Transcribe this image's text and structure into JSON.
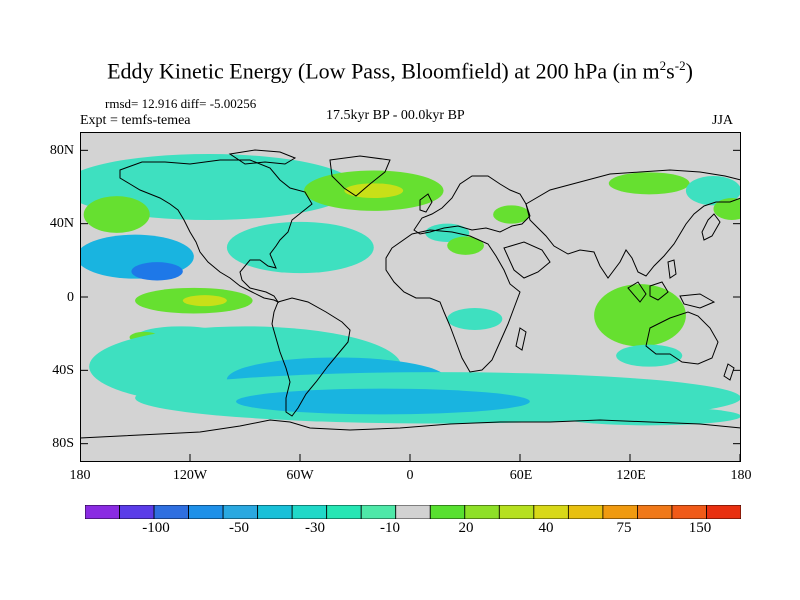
{
  "title": {
    "main": "Eddy Kinetic Energy (Low Pass, Bloomfield) at 200 hPa (in m",
    "sup1": "2",
    "mid": "s",
    "sup2": "-2",
    "end": ")"
  },
  "stats": "rmsd= 12.916 diff= -5.00256",
  "experiment": "Expt = temfs-temea",
  "period": "17.5kyr BP - 00.0kyr BP",
  "season": "JJA",
  "chart_data": {
    "type": "heatmap",
    "projection": "cylindrical-equidistant",
    "variable": "Eddy kinetic energy difference, 200 hPa",
    "units": "m2 s-2",
    "lon_range": [
      -180,
      180
    ],
    "lat_range": [
      -90,
      90
    ],
    "x_ticks": [
      "180",
      "120W",
      "60W",
      "0",
      "60E",
      "120E",
      "180"
    ],
    "y_ticks": [
      "80N",
      "40N",
      "0",
      "40S",
      "80S"
    ],
    "colorbar": {
      "labels": [
        "-100",
        "-50",
        "-30",
        "-10",
        "20",
        "40",
        "75",
        "150"
      ],
      "colors": [
        "#8a2be2",
        "#5a3ce8",
        "#2f6fe0",
        "#1e90e8",
        "#2aa8e0",
        "#19c0d8",
        "#20d8c8",
        "#26e6b4",
        "#4ee8a8",
        "#d2d2d2",
        "#58e030",
        "#8ee028",
        "#b6e020",
        "#d8d818",
        "#e8c010",
        "#f09a10",
        "#f07818",
        "#f05a18",
        "#e83010"
      ]
    },
    "anomaly_regions": [
      {
        "lon": -110,
        "lat": 60,
        "rx": 80,
        "ry": 18,
        "level": -10
      },
      {
        "lon": -160,
        "lat": 45,
        "rx": 18,
        "ry": 10,
        "level": 20
      },
      {
        "lon": -150,
        "lat": 22,
        "rx": 32,
        "ry": 12,
        "level": -30
      },
      {
        "lon": -138,
        "lat": 14,
        "rx": 14,
        "ry": 5,
        "level": -50
      },
      {
        "lon": -60,
        "lat": 27,
        "rx": 40,
        "ry": 14,
        "level": -10
      },
      {
        "lon": -118,
        "lat": -2,
        "rx": 32,
        "ry": 7,
        "level": 20
      },
      {
        "lon": -112,
        "lat": -2,
        "rx": 12,
        "ry": 3,
        "level": 40
      },
      {
        "lon": -125,
        "lat": -22,
        "rx": 25,
        "ry": 6,
        "level": -10
      },
      {
        "lon": -145,
        "lat": -22,
        "rx": 8,
        "ry": 3,
        "level": 20
      },
      {
        "lon": -90,
        "lat": -38,
        "rx": 85,
        "ry": 22,
        "level": -10
      },
      {
        "lon": -40,
        "lat": -45,
        "rx": 60,
        "ry": 12,
        "level": -30
      },
      {
        "lon": 15,
        "lat": -55,
        "rx": 165,
        "ry": 14,
        "level": -10
      },
      {
        "lon": -15,
        "lat": -57,
        "rx": 80,
        "ry": 7,
        "level": -30
      },
      {
        "lon": -20,
        "lat": 58,
        "rx": 38,
        "ry": 11,
        "level": 20
      },
      {
        "lon": -20,
        "lat": 58,
        "rx": 16,
        "ry": 4,
        "level": 40
      },
      {
        "lon": 55,
        "lat": 45,
        "rx": 10,
        "ry": 5,
        "level": 20
      },
      {
        "lon": 35,
        "lat": -12,
        "rx": 15,
        "ry": 6,
        "level": -10
      },
      {
        "lon": 125,
        "lat": -10,
        "rx": 25,
        "ry": 17,
        "level": 20
      },
      {
        "lon": 130,
        "lat": 62,
        "rx": 22,
        "ry": 6,
        "level": 20
      },
      {
        "lon": 165,
        "lat": 58,
        "rx": 15,
        "ry": 8,
        "level": -10
      },
      {
        "lon": 175,
        "lat": 48,
        "rx": 10,
        "ry": 6,
        "level": 20
      },
      {
        "lon": 130,
        "lat": -32,
        "rx": 18,
        "ry": 6,
        "level": -10
      },
      {
        "lon": 130,
        "lat": -65,
        "rx": 50,
        "ry": 5,
        "level": -10
      },
      {
        "lon": 20,
        "lat": 35,
        "rx": 12,
        "ry": 5,
        "level": -10
      },
      {
        "lon": 30,
        "lat": 28,
        "rx": 10,
        "ry": 5,
        "level": 20
      }
    ]
  }
}
